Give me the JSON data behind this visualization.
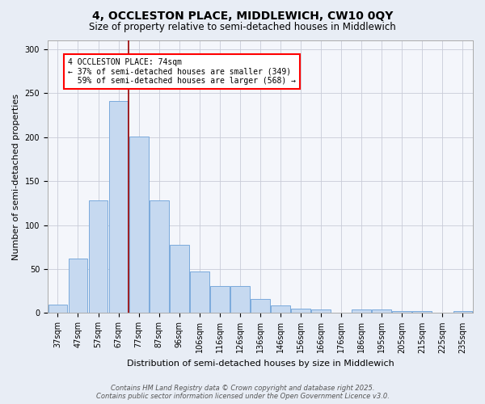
{
  "title_line1": "4, OCCLESTON PLACE, MIDDLEWICH, CW10 0QY",
  "title_line2": "Size of property relative to semi-detached houses in Middlewich",
  "xlabel": "Distribution of semi-detached houses by size in Middlewich",
  "ylabel": "Number of semi-detached properties",
  "bar_labels": [
    "37sqm",
    "47sqm",
    "57sqm",
    "67sqm",
    "77sqm",
    "87sqm",
    "96sqm",
    "106sqm",
    "116sqm",
    "126sqm",
    "136sqm",
    "146sqm",
    "156sqm",
    "166sqm",
    "176sqm",
    "186sqm",
    "195sqm",
    "205sqm",
    "215sqm",
    "225sqm",
    "235sqm"
  ],
  "bar_values": [
    10,
    62,
    128,
    241,
    201,
    128,
    78,
    47,
    31,
    31,
    16,
    9,
    5,
    4,
    0,
    4,
    4,
    2,
    2,
    0,
    2
  ],
  "bar_color": "#c6d9f0",
  "bar_edge_color": "#7aaadc",
  "ylim": [
    0,
    310
  ],
  "yticks": [
    0,
    50,
    100,
    150,
    200,
    250,
    300
  ],
  "property_label": "4 OCCLESTON PLACE: 74sqm",
  "pct_smaller": 37,
  "pct_smaller_count": 349,
  "pct_larger": 59,
  "pct_larger_count": 568,
  "red_line_bin": 3,
  "footer_line1": "Contains HM Land Registry data © Crown copyright and database right 2025.",
  "footer_line2": "Contains public sector information licensed under the Open Government Licence v3.0.",
  "bg_color": "#e8edf5",
  "plot_bg_color": "#f4f6fb",
  "grid_color": "#c8ccd8",
  "title_fontsize": 10,
  "subtitle_fontsize": 8.5,
  "axis_label_fontsize": 8,
  "tick_fontsize": 7,
  "footer_fontsize": 6,
  "ann_fontsize": 7
}
